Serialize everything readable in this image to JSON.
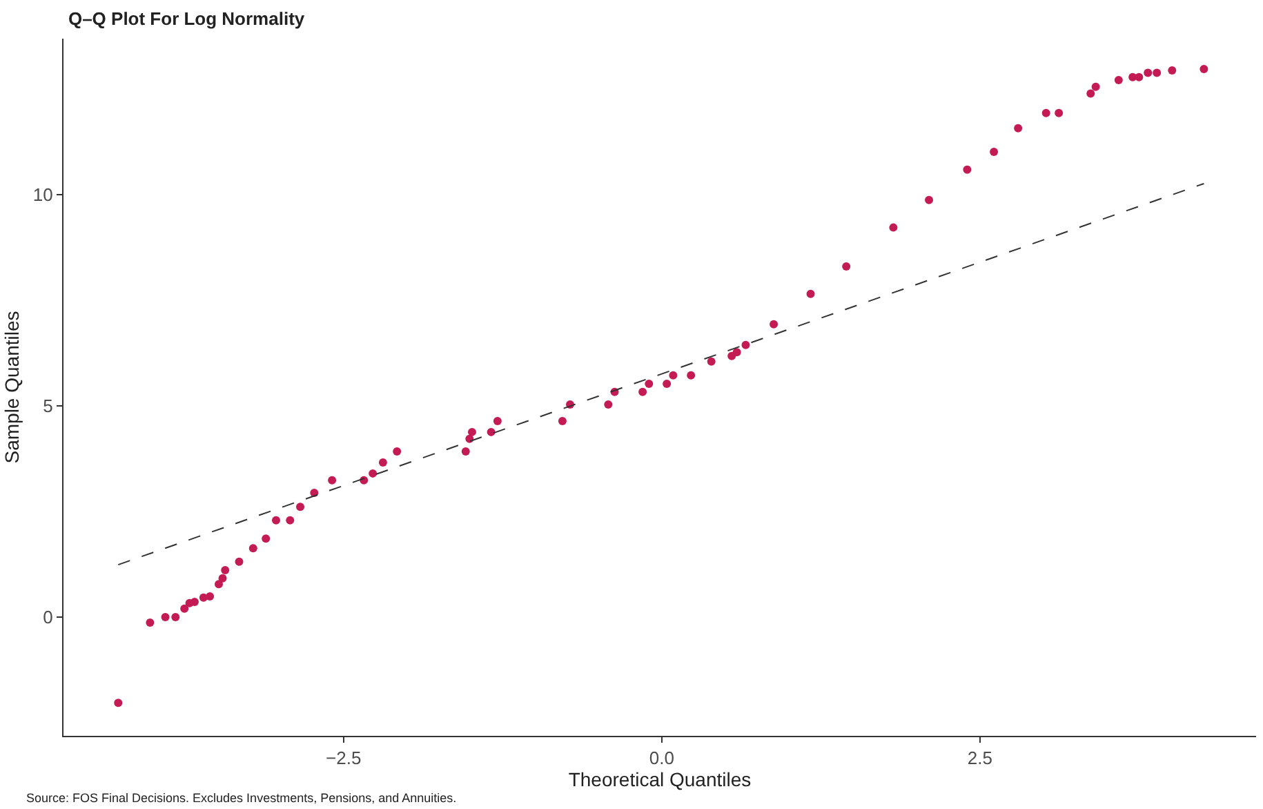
{
  "chart_data": {
    "type": "scatter",
    "title": "Q–Q Plot For Log Normality",
    "xlabel": "Theoretical Quantiles",
    "ylabel": "Sample Quantiles",
    "annotations": [
      "Source: FOS Final Decisions. Excludes Investments, Pensions, and Annuities."
    ],
    "xlim": [
      -4.7,
      4.67
    ],
    "ylim": [
      -2.81,
      13.69
    ],
    "xticks": [
      {
        "value": -2.5,
        "label": "−2.5"
      },
      {
        "value": 0,
        "label": "0.0"
      },
      {
        "value": 2.5,
        "label": "2.5"
      }
    ],
    "yticks": [
      0,
      5,
      10
    ],
    "marker": "circle",
    "series": [
      {
        "color": "#c51b54",
        "x": [
          -4.27,
          -4.02,
          -3.9,
          -3.82,
          -3.75,
          -3.71,
          -3.67,
          -3.6,
          -3.55,
          -3.48,
          -3.45,
          -3.43,
          -3.32,
          -3.21,
          -3.11,
          -3.03,
          -2.92,
          -2.84,
          -2.73,
          -2.59,
          -2.34,
          -2.27,
          -2.19,
          -2.08,
          -1.54,
          -1.51,
          -1.49,
          -1.34,
          -1.29,
          -0.78,
          -0.72,
          -0.42,
          -0.37,
          -0.15,
          -0.1,
          0.04,
          0.09,
          0.23,
          0.39,
          0.55,
          0.59,
          0.66,
          0.88,
          1.17,
          1.45,
          1.82,
          2.1,
          2.4,
          2.61,
          2.8,
          3.02,
          3.12,
          3.37,
          3.41,
          3.59,
          3.7,
          3.75,
          3.82,
          3.89,
          4.01,
          4.26
        ],
        "values": [
          -2.03,
          -0.13,
          0.0,
          0.0,
          0.2,
          0.33,
          0.36,
          0.46,
          0.49,
          0.78,
          0.92,
          1.11,
          1.31,
          1.63,
          1.86,
          2.29,
          2.29,
          2.61,
          2.94,
          3.24,
          3.24,
          3.4,
          3.66,
          3.92,
          3.92,
          4.22,
          4.38,
          4.38,
          4.64,
          4.64,
          5.03,
          5.03,
          5.33,
          5.33,
          5.52,
          5.52,
          5.72,
          5.72,
          6.05,
          6.18,
          6.27,
          6.44,
          6.93,
          7.65,
          8.3,
          9.22,
          9.87,
          10.59,
          11.01,
          11.57,
          11.93,
          11.93,
          12.39,
          12.55,
          12.71,
          12.78,
          12.78,
          12.88,
          12.88,
          12.94,
          12.97
        ]
      },
      {
        "type": "line",
        "color": "#333333",
        "line_style": "dashed",
        "marker": "none",
        "x": [
          -4.27,
          4.26
        ],
        "values": [
          1.24,
          10.26
        ]
      }
    ]
  }
}
